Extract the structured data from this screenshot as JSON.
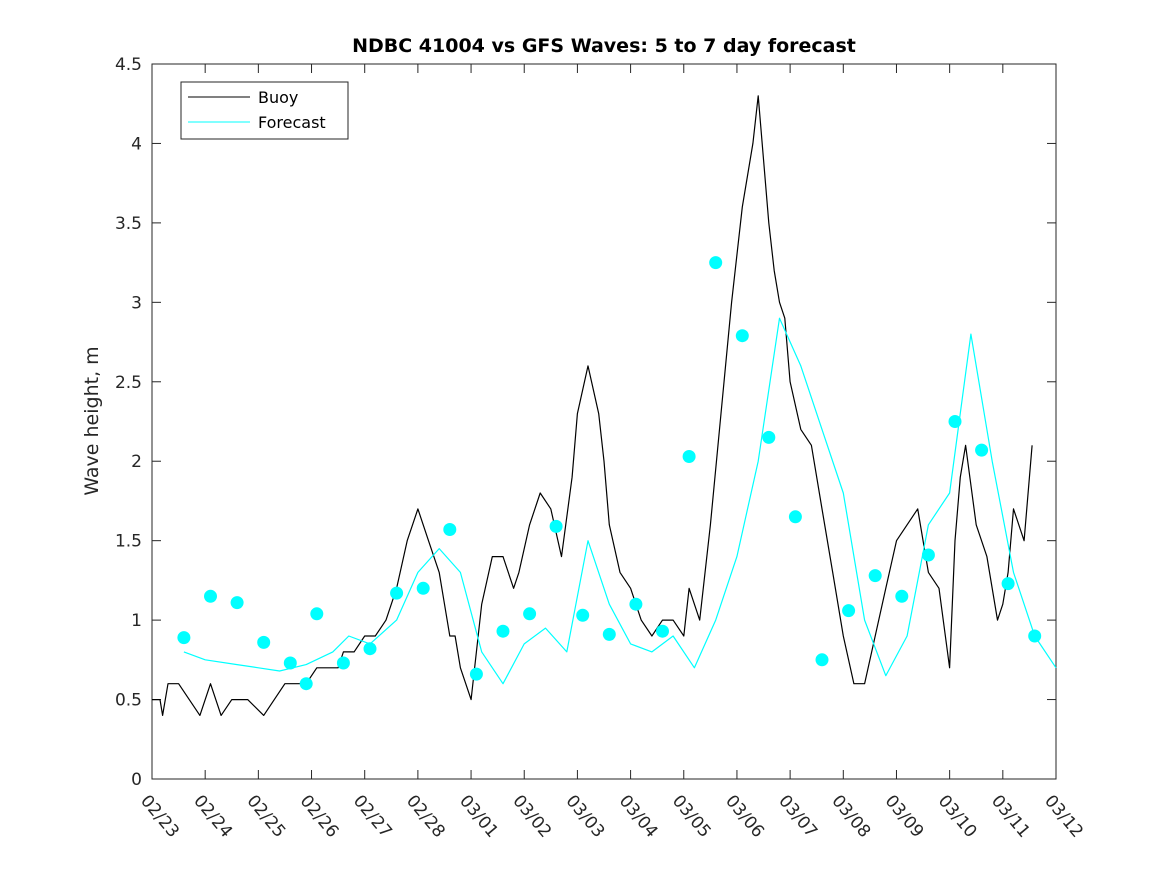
{
  "chart_data": {
    "type": "line",
    "title": "NDBC 41004 vs GFS Waves: 5 to 7 day forecast",
    "xlabel": "",
    "ylabel": "Wave height, m",
    "xlim": [
      0,
      17
    ],
    "ylim": [
      0,
      4.5
    ],
    "yticks": [
      0,
      0.5,
      1,
      1.5,
      2,
      2.5,
      3,
      3.5,
      4,
      4.5
    ],
    "ytick_labels": [
      "0",
      "0.5",
      "1",
      "1.5",
      "2",
      "2.5",
      "3",
      "3.5",
      "4",
      "4.5"
    ],
    "xtick_labels": [
      "02/23",
      "02/24",
      "02/25",
      "02/26",
      "02/27",
      "02/28",
      "03/01",
      "03/02",
      "03/03",
      "03/04",
      "03/05",
      "03/06",
      "03/07",
      "03/08",
      "03/09",
      "03/10",
      "03/11",
      "03/12"
    ],
    "legend": {
      "location": "top-left",
      "entries": [
        "Buoy",
        "Forecast"
      ]
    },
    "colors": {
      "buoy": "#000000",
      "forecast": "#00ffff",
      "axis": "#262626"
    },
    "series": [
      {
        "name": "Buoy",
        "x": [
          0,
          0.15,
          0.2,
          0.3,
          0.5,
          0.9,
          1.1,
          1.3,
          1.5,
          1.8,
          2.1,
          2.5,
          2.9,
          3.1,
          3.2,
          3.4,
          3.5,
          3.6,
          3.8,
          4.0,
          4.2,
          4.4,
          4.6,
          4.8,
          5.0,
          5.2,
          5.4,
          5.5,
          5.6,
          5.7,
          5.8,
          6.0,
          6.2,
          6.4,
          6.6,
          6.8,
          6.9,
          7.1,
          7.3,
          7.5,
          7.7,
          7.9,
          8.0,
          8.2,
          8.4,
          8.5,
          8.6,
          8.8,
          9.0,
          9.2,
          9.4,
          9.6,
          9.8,
          10.0,
          10.1,
          10.3,
          10.5,
          10.7,
          10.9,
          11.1,
          11.3,
          11.4,
          11.5,
          11.6,
          11.7,
          11.8,
          11.9,
          12.0,
          12.2,
          12.4,
          12.6,
          12.8,
          13.0,
          13.2,
          13.4,
          13.6,
          13.8,
          14.0,
          14.2,
          14.4,
          14.6,
          14.8,
          15.0,
          15.1,
          15.2,
          15.3,
          15.5,
          15.7,
          15.9,
          16.0,
          16.1,
          16.2,
          16.4,
          16.55
        ],
        "values": [
          0.5,
          0.5,
          0.4,
          0.6,
          0.6,
          0.4,
          0.6,
          0.4,
          0.5,
          0.5,
          0.4,
          0.6,
          0.6,
          0.7,
          0.7,
          0.7,
          0.7,
          0.8,
          0.8,
          0.9,
          0.9,
          1.0,
          1.2,
          1.5,
          1.7,
          1.5,
          1.3,
          1.1,
          0.9,
          0.9,
          0.7,
          0.5,
          1.1,
          1.4,
          1.4,
          1.2,
          1.3,
          1.6,
          1.8,
          1.7,
          1.4,
          1.9,
          2.3,
          2.6,
          2.3,
          2.0,
          1.6,
          1.3,
          1.2,
          1.0,
          0.9,
          1.0,
          1.0,
          0.9,
          1.2,
          1.0,
          1.6,
          2.3,
          3.0,
          3.6,
          4.0,
          4.3,
          3.9,
          3.5,
          3.2,
          3.0,
          2.9,
          2.5,
          2.2,
          2.1,
          1.7,
          1.3,
          0.9,
          0.6,
          0.6,
          0.9,
          1.2,
          1.5,
          1.6,
          1.7,
          1.3,
          1.2,
          0.7,
          1.5,
          1.9,
          2.1,
          1.6,
          1.4,
          1.0,
          1.1,
          1.3,
          1.7,
          1.5,
          2.1
        ]
      },
      {
        "name": "Forecast",
        "x": [
          0.6,
          1.0,
          1.6,
          2.0,
          2.4,
          2.9,
          3.4,
          3.7,
          4.1,
          4.6,
          5.0,
          5.4,
          5.8,
          6.2,
          6.6,
          7.0,
          7.4,
          7.8,
          8.2,
          8.6,
          9.0,
          9.4,
          9.8,
          10.2,
          10.6,
          11.0,
          11.4,
          11.8,
          12.2,
          12.6,
          13.0,
          13.4,
          13.8,
          14.2,
          14.6,
          15.0,
          15.4,
          15.8,
          16.2,
          16.6,
          17.0
        ],
        "values": [
          0.8,
          0.75,
          0.72,
          0.7,
          0.68,
          0.72,
          0.8,
          0.9,
          0.85,
          1.0,
          1.3,
          1.45,
          1.3,
          0.8,
          0.6,
          0.85,
          0.95,
          0.8,
          1.5,
          1.1,
          0.85,
          0.8,
          0.9,
          0.7,
          1.0,
          1.4,
          2.0,
          2.9,
          2.6,
          2.2,
          1.8,
          1.0,
          0.65,
          0.9,
          1.6,
          1.8,
          2.8,
          2.0,
          1.3,
          0.9,
          0.7
        ]
      }
    ],
    "markers": {
      "x": [
        0.6,
        1.1,
        1.6,
        2.1,
        2.6,
        2.9,
        3.1,
        3.6,
        4.1,
        4.6,
        5.1,
        5.6,
        6.1,
        6.6,
        7.1,
        7.6,
        8.1,
        8.6,
        9.1,
        9.6,
        10.1,
        10.6,
        11.1,
        11.6,
        12.1,
        12.6,
        13.1,
        13.6,
        14.1,
        14.6,
        15.1,
        15.6,
        16.1,
        16.6
      ],
      "values": [
        0.89,
        1.15,
        1.11,
        0.86,
        0.73,
        0.6,
        1.04,
        0.73,
        0.82,
        1.17,
        1.2,
        1.57,
        0.66,
        0.93,
        1.04,
        1.59,
        1.03,
        0.91,
        1.1,
        0.93,
        2.03,
        3.25,
        2.79,
        2.15,
        1.65,
        0.75,
        1.06,
        1.28,
        1.15,
        1.41,
        2.25,
        2.07,
        1.23,
        0.9
      ]
    }
  }
}
